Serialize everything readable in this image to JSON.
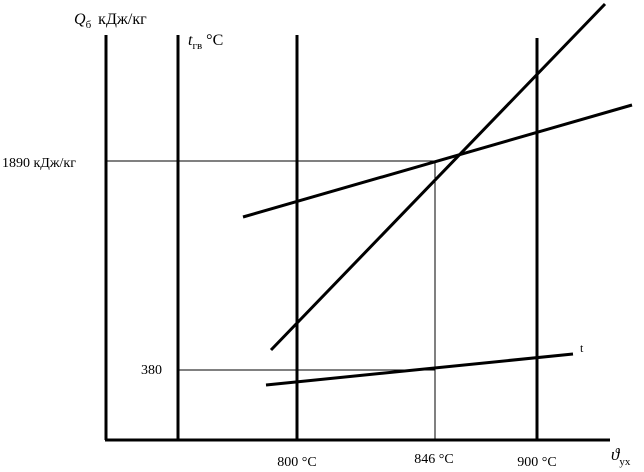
{
  "axes": {
    "q_axis": {
      "symbol": "Q",
      "sub": "б",
      "unit": "кДж/кг"
    },
    "t_axis": {
      "symbol": "t",
      "sub": "гв",
      "unit": "°С"
    },
    "x_axis": {
      "symbol": "ϑ",
      "sub": "ух"
    }
  },
  "ticks": {
    "x": [
      "800 °С",
      "846 °С",
      "900 °С"
    ],
    "q_marker": "1890 кДж/кг",
    "t_marker": "380"
  },
  "curve_label": "t",
  "colors": {
    "line": "#000000",
    "background": "#ffffff"
  }
}
